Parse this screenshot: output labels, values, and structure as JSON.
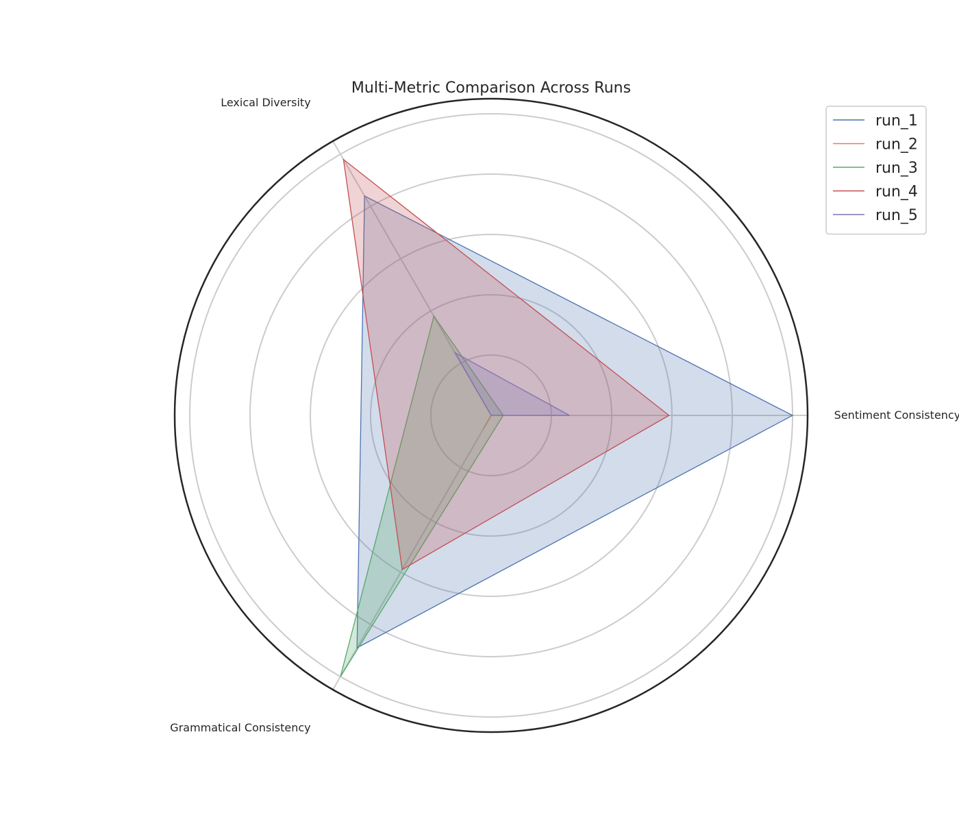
{
  "chart_data": {
    "type": "radar",
    "title": "Multi-Metric Comparison Across Runs",
    "axes": [
      "Sentiment Consistency",
      "Lexical Diversity",
      "Grammatical Consistency"
    ],
    "rlim": [
      0,
      1.05
    ],
    "rings": [
      0.2,
      0.4,
      0.6,
      0.8,
      1.0
    ],
    "grid": true,
    "legend_position": "top-right",
    "series": [
      {
        "name": "run_1",
        "color": "#4c72b0",
        "values": [
          1.0,
          0.84,
          0.89
        ]
      },
      {
        "name": "run_2",
        "color": "#dd8452",
        "values": [
          0.0,
          0.0,
          0.05
        ]
      },
      {
        "name": "run_3",
        "color": "#55a868",
        "values": [
          0.04,
          0.38,
          1.0
        ]
      },
      {
        "name": "run_4",
        "color": "#c44e52",
        "values": [
          0.59,
          0.98,
          0.59
        ]
      },
      {
        "name": "run_5",
        "color": "#8172b3",
        "values": [
          0.26,
          0.24,
          0.0
        ]
      }
    ]
  }
}
